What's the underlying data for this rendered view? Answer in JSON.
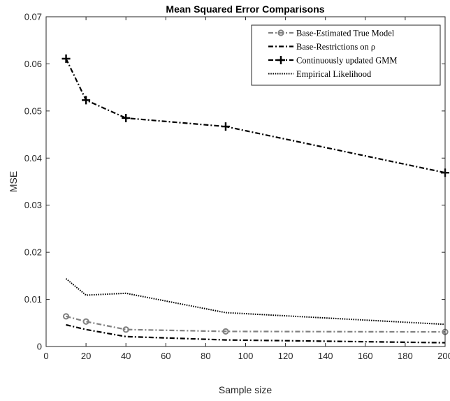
{
  "chart_data": {
    "type": "line",
    "title": "Mean Squared Error Comparisons",
    "xlabel": "Sample size",
    "ylabel": "MSE",
    "xlim": [
      0,
      200
    ],
    "ylim": [
      0,
      0.07
    ],
    "xticks": [
      0,
      20,
      40,
      60,
      80,
      100,
      120,
      140,
      160,
      180,
      200
    ],
    "yticks": [
      0,
      0.01,
      0.02,
      0.03,
      0.04,
      0.05,
      0.06,
      0.07
    ],
    "xtick_labels": [
      "0",
      "20",
      "40",
      "60",
      "80",
      "100",
      "120",
      "140",
      "160",
      "180",
      "200"
    ],
    "ytick_labels": [
      "0",
      "0.01",
      "0.02",
      "0.03",
      "0.04",
      "0.05",
      "0.06",
      "0.07"
    ],
    "grid": false,
    "legend_position": "top-right",
    "series": [
      {
        "name": "Base-Estimated True Model",
        "x": [
          10,
          20,
          40,
          90,
          200
        ],
        "y": [
          0.0064,
          0.0053,
          0.0036,
          0.0032,
          0.0031
        ],
        "color": "#808080",
        "dash": "dash-dot",
        "marker": "circle"
      },
      {
        "name": "Base-Restrictions on ρ",
        "x": [
          10,
          20,
          40,
          90,
          200
        ],
        "y": [
          0.0046,
          0.0036,
          0.0021,
          0.0014,
          0.0008
        ],
        "color": "#000000",
        "dash": "dash-dot",
        "marker": "none"
      },
      {
        "name": "Continuously updated GMM",
        "x": [
          10,
          20,
          40,
          90,
          200
        ],
        "y": [
          0.0611,
          0.0523,
          0.0485,
          0.0467,
          0.0369
        ],
        "color": "#000000",
        "dash": "dash-dot",
        "marker": "plus"
      },
      {
        "name": "Empirical Likelihood",
        "x": [
          10,
          20,
          40,
          90,
          200
        ],
        "y": [
          0.0144,
          0.0109,
          0.0113,
          0.0072,
          0.0047
        ],
        "color": "#000000",
        "dash": "dotted",
        "marker": "none"
      }
    ]
  }
}
